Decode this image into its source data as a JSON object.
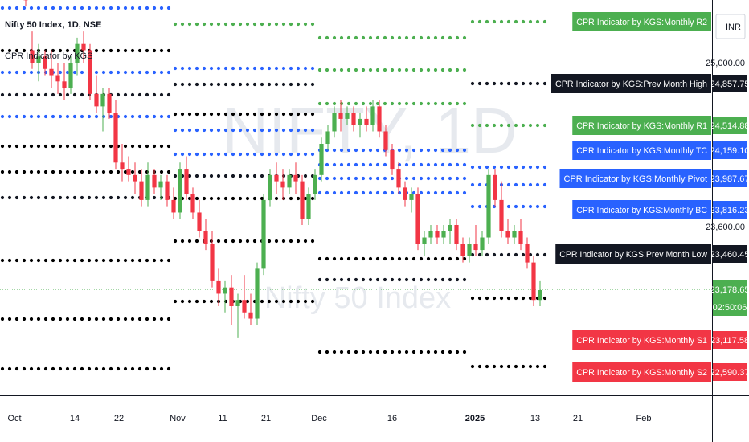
{
  "header": {
    "symbol_line": "Nifty 50 Index, 1D, NSE",
    "indicator_line": "CPR Indicator by KGS"
  },
  "watermark": {
    "big": "NIFTY, 1D",
    "small": "Nifty 50 Index"
  },
  "colors": {
    "up": "#4caf50",
    "down": "#f23645",
    "blue": "#2962ff",
    "black": "#131722",
    "green_level": "#4caf50",
    "red_level": "#f23645"
  },
  "chart_data": {
    "type": "candlestick",
    "timeframe": "1D",
    "x_tick_labels": [
      "Oct",
      "14",
      "22",
      "Nov",
      "11",
      "21",
      "Dec",
      "16",
      "2025",
      "13",
      "21",
      "Feb"
    ],
    "y_tick_labels": [
      "INR",
      "25,000.00",
      "23,600.00"
    ],
    "price_axis_labels": [
      {
        "value": "24,857.75",
        "tag": "CPR Indicator by KGS:Prev Month High",
        "color": "#131722"
      },
      {
        "value": "24,514.88",
        "tag": "CPR Indicator by KGS:Monthly R1",
        "color": "#4caf50"
      },
      {
        "value": "24,159.10",
        "tag": "CPR Indicator by KGS:Monthly TC",
        "color": "#2962ff"
      },
      {
        "value": "23,987.67",
        "tag": "CPR Indicator by KGS:Monthly Pivot",
        "color": "#2962ff"
      },
      {
        "value": "23,816.23",
        "tag": "CPR Indicator by KGS:Monthly BC",
        "color": "#2962ff"
      },
      {
        "value": "23,460.45",
        "tag": "CPR Indicator by KGS:Prev Month Low",
        "color": "#131722"
      },
      {
        "value": "23,178.65",
        "tag": "",
        "color": "#4caf50"
      },
      {
        "value": "02:50:06",
        "tag": "",
        "color": "#4caf50"
      },
      {
        "value": "23,117.58",
        "tag": "CPR Indicator by KGS:Monthly S1",
        "color": "#f23645"
      },
      {
        "value": "22,590.37",
        "tag": "CPR Indicator by KGS:Monthly S2",
        "color": "#f23645"
      },
      {
        "value": "",
        "tag": "CPR Indicator by KGS:Monthly R2",
        "color": "#4caf50"
      }
    ],
    "candles": [
      {
        "o": 25800,
        "h": 25900,
        "l": 25600,
        "c": 25700
      },
      {
        "o": 25700,
        "h": 25800,
        "l": 25550,
        "c": 25600
      },
      {
        "o": 25600,
        "h": 25750,
        "l": 25450,
        "c": 25500
      },
      {
        "o": 25100,
        "h": 25250,
        "l": 24950,
        "c": 25000
      },
      {
        "o": 25000,
        "h": 25150,
        "l": 24850,
        "c": 25050
      },
      {
        "o": 25050,
        "h": 25100,
        "l": 24900,
        "c": 24950
      },
      {
        "o": 24950,
        "h": 25100,
        "l": 24800,
        "c": 24900
      },
      {
        "o": 24900,
        "h": 25000,
        "l": 24750,
        "c": 24850
      },
      {
        "o": 24850,
        "h": 25000,
        "l": 24700,
        "c": 24800
      },
      {
        "o": 24800,
        "h": 25050,
        "l": 24750,
        "c": 25000
      },
      {
        "o": 25000,
        "h": 25200,
        "l": 24900,
        "c": 25150
      },
      {
        "o": 25150,
        "h": 25250,
        "l": 25000,
        "c": 25100
      },
      {
        "o": 25100,
        "h": 25150,
        "l": 24700,
        "c": 24750
      },
      {
        "o": 24750,
        "h": 24900,
        "l": 24600,
        "c": 24650
      },
      {
        "o": 24650,
        "h": 24800,
        "l": 24450,
        "c": 24750
      },
      {
        "o": 24750,
        "h": 24800,
        "l": 24550,
        "c": 24600
      },
      {
        "o": 24600,
        "h": 24700,
        "l": 24150,
        "c": 24200
      },
      {
        "o": 24200,
        "h": 24350,
        "l": 24050,
        "c": 24150
      },
      {
        "o": 24150,
        "h": 24250,
        "l": 24050,
        "c": 24100
      },
      {
        "o": 24100,
        "h": 24200,
        "l": 23950,
        "c": 24050
      },
      {
        "o": 24050,
        "h": 24150,
        "l": 23850,
        "c": 23900
      },
      {
        "o": 23900,
        "h": 24200,
        "l": 23850,
        "c": 24100
      },
      {
        "o": 24100,
        "h": 24150,
        "l": 23950,
        "c": 24000
      },
      {
        "o": 24000,
        "h": 24100,
        "l": 23900,
        "c": 24050
      },
      {
        "o": 24050,
        "h": 24100,
        "l": 23850,
        "c": 23900
      },
      {
        "o": 23900,
        "h": 24000,
        "l": 23750,
        "c": 23800
      },
      {
        "o": 23800,
        "h": 24200,
        "l": 23750,
        "c": 24150
      },
      {
        "o": 24150,
        "h": 24250,
        "l": 23900,
        "c": 23950
      },
      {
        "o": 23950,
        "h": 24000,
        "l": 23750,
        "c": 23800
      },
      {
        "o": 23800,
        "h": 23900,
        "l": 23600,
        "c": 23650
      },
      {
        "o": 23650,
        "h": 23750,
        "l": 23500,
        "c": 23550
      },
      {
        "o": 23550,
        "h": 23650,
        "l": 23200,
        "c": 23250
      },
      {
        "o": 23250,
        "h": 23350,
        "l": 23050,
        "c": 23150
      },
      {
        "o": 23150,
        "h": 23250,
        "l": 23000,
        "c": 23200
      },
      {
        "o": 23200,
        "h": 23300,
        "l": 22900,
        "c": 23050
      },
      {
        "o": 23050,
        "h": 23150,
        "l": 22800,
        "c": 23100
      },
      {
        "o": 23100,
        "h": 23300,
        "l": 22950,
        "c": 23000
      },
      {
        "o": 23000,
        "h": 23150,
        "l": 22900,
        "c": 22950
      },
      {
        "o": 22950,
        "h": 23400,
        "l": 22900,
        "c": 23350
      },
      {
        "o": 23350,
        "h": 23950,
        "l": 23300,
        "c": 23900
      },
      {
        "o": 23900,
        "h": 24150,
        "l": 23850,
        "c": 24100
      },
      {
        "o": 24100,
        "h": 24200,
        "l": 23950,
        "c": 24050
      },
      {
        "o": 24050,
        "h": 24150,
        "l": 23900,
        "c": 24000
      },
      {
        "o": 24000,
        "h": 24150,
        "l": 23950,
        "c": 24100
      },
      {
        "o": 24100,
        "h": 24200,
        "l": 23950,
        "c": 24050
      },
      {
        "o": 24050,
        "h": 24100,
        "l": 23700,
        "c": 23750
      },
      {
        "o": 23750,
        "h": 24000,
        "l": 23700,
        "c": 23950
      },
      {
        "o": 23950,
        "h": 24150,
        "l": 23900,
        "c": 24100
      },
      {
        "o": 24100,
        "h": 24400,
        "l": 24050,
        "c": 24350
      },
      {
        "o": 24350,
        "h": 24500,
        "l": 24300,
        "c": 24450
      },
      {
        "o": 24450,
        "h": 24650,
        "l": 24400,
        "c": 24600
      },
      {
        "o": 24600,
        "h": 24700,
        "l": 24450,
        "c": 24550
      },
      {
        "o": 24550,
        "h": 24650,
        "l": 24500,
        "c": 24600
      },
      {
        "o": 24600,
        "h": 24650,
        "l": 24450,
        "c": 24500
      },
      {
        "o": 24500,
        "h": 24600,
        "l": 24400,
        "c": 24550
      },
      {
        "o": 24550,
        "h": 24650,
        "l": 24450,
        "c": 24500
      },
      {
        "o": 24500,
        "h": 24700,
        "l": 24450,
        "c": 24650
      },
      {
        "o": 24650,
        "h": 24700,
        "l": 24400,
        "c": 24450
      },
      {
        "o": 24450,
        "h": 24500,
        "l": 24250,
        "c": 24300
      },
      {
        "o": 24300,
        "h": 24350,
        "l": 24100,
        "c": 24150
      },
      {
        "o": 24150,
        "h": 24200,
        "l": 23950,
        "c": 24000
      },
      {
        "o": 24000,
        "h": 24050,
        "l": 23850,
        "c": 23900
      },
      {
        "o": 23900,
        "h": 24000,
        "l": 23800,
        "c": 23950
      },
      {
        "o": 23950,
        "h": 24000,
        "l": 23500,
        "c": 23550
      },
      {
        "o": 23550,
        "h": 23650,
        "l": 23450,
        "c": 23600
      },
      {
        "o": 23600,
        "h": 23700,
        "l": 23550,
        "c": 23650
      },
      {
        "o": 23650,
        "h": 23700,
        "l": 23550,
        "c": 23600
      },
      {
        "o": 23600,
        "h": 23700,
        "l": 23550,
        "c": 23650
      },
      {
        "o": 23650,
        "h": 23750,
        "l": 23550,
        "c": 23700
      },
      {
        "o": 23700,
        "h": 23750,
        "l": 23500,
        "c": 23550
      },
      {
        "o": 23550,
        "h": 23600,
        "l": 23400,
        "c": 23450
      },
      {
        "o": 23450,
        "h": 23600,
        "l": 23400,
        "c": 23550
      },
      {
        "o": 23550,
        "h": 23700,
        "l": 23450,
        "c": 23500
      },
      {
        "o": 23500,
        "h": 23650,
        "l": 23450,
        "c": 23600
      },
      {
        "o": 23600,
        "h": 24150,
        "l": 23550,
        "c": 24100
      },
      {
        "o": 24100,
        "h": 24150,
        "l": 23850,
        "c": 23900
      },
      {
        "o": 23900,
        "h": 24050,
        "l": 23600,
        "c": 23650
      },
      {
        "o": 23650,
        "h": 23750,
        "l": 23550,
        "c": 23600
      },
      {
        "o": 23600,
        "h": 23700,
        "l": 23550,
        "c": 23650
      },
      {
        "o": 23650,
        "h": 23750,
        "l": 23500,
        "c": 23550
      },
      {
        "o": 23550,
        "h": 23600,
        "l": 23350,
        "c": 23400
      },
      {
        "o": 23400,
        "h": 23450,
        "l": 23050,
        "c": 23100
      },
      {
        "o": 23100,
        "h": 23250,
        "l": 23050,
        "c": 23178.65
      }
    ],
    "levels": [
      {
        "name": "Monthly R2",
        "color": "#4caf50"
      },
      {
        "name": "Prev Month High",
        "value": 24857.75,
        "color": "#131722"
      },
      {
        "name": "Monthly R1",
        "value": 24514.88,
        "color": "#4caf50"
      },
      {
        "name": "Monthly TC",
        "value": 24159.1,
        "color": "#2962ff"
      },
      {
        "name": "Monthly Pivot",
        "value": 23987.67,
        "color": "#2962ff"
      },
      {
        "name": "Monthly BC",
        "value": 23816.23,
        "color": "#2962ff"
      },
      {
        "name": "Prev Month Low",
        "value": 23460.45,
        "color": "#131722"
      },
      {
        "name": "Monthly S1",
        "value": 23117.58,
        "color": "#f23645"
      },
      {
        "name": "Monthly S2",
        "value": 22590.37,
        "color": "#f23645"
      }
    ]
  }
}
